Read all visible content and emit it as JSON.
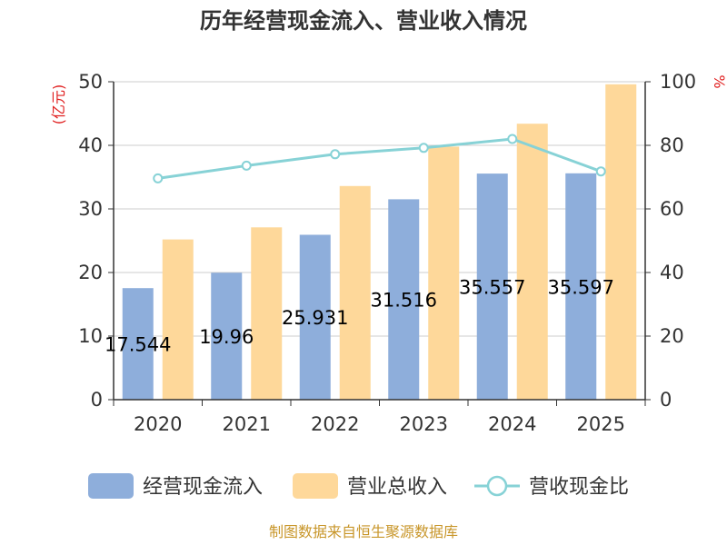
{
  "chart_data": {
    "type": "bar",
    "title": "历年经营现金流入、营业收入情况",
    "categories": [
      "2020",
      "2021",
      "2022",
      "2023",
      "2024",
      "2025"
    ],
    "y_left": {
      "unit": "(亿元)",
      "ticks": [
        "0",
        "10",
        "20",
        "30",
        "40",
        "50"
      ],
      "ylim": [
        0,
        50
      ]
    },
    "y_right": {
      "unit": "%",
      "ticks": [
        "0",
        "20",
        "40",
        "60",
        "80",
        "100"
      ],
      "ylim": [
        0,
        100
      ]
    },
    "series": [
      {
        "name": "经营现金流入",
        "kind": "bar",
        "axis": "left",
        "color": "#8eaedb",
        "values": [
          17.544,
          19.96,
          25.931,
          31.516,
          35.557,
          35.597
        ],
        "labels": [
          "17.544",
          "19.96",
          "25.931",
          "31.516",
          "35.557",
          "35.597"
        ]
      },
      {
        "name": "营业总收入",
        "kind": "bar",
        "axis": "left",
        "color": "#fed89a",
        "values": [
          25.2,
          27.1,
          33.6,
          39.8,
          43.4,
          49.6
        ]
      },
      {
        "name": "营收现金比",
        "kind": "line",
        "axis": "right",
        "color": "#87d2d6",
        "values": [
          69.6,
          73.6,
          77.2,
          79.2,
          82.0,
          71.8
        ]
      }
    ],
    "source": "制图数据来自恒生聚源数据库"
  }
}
